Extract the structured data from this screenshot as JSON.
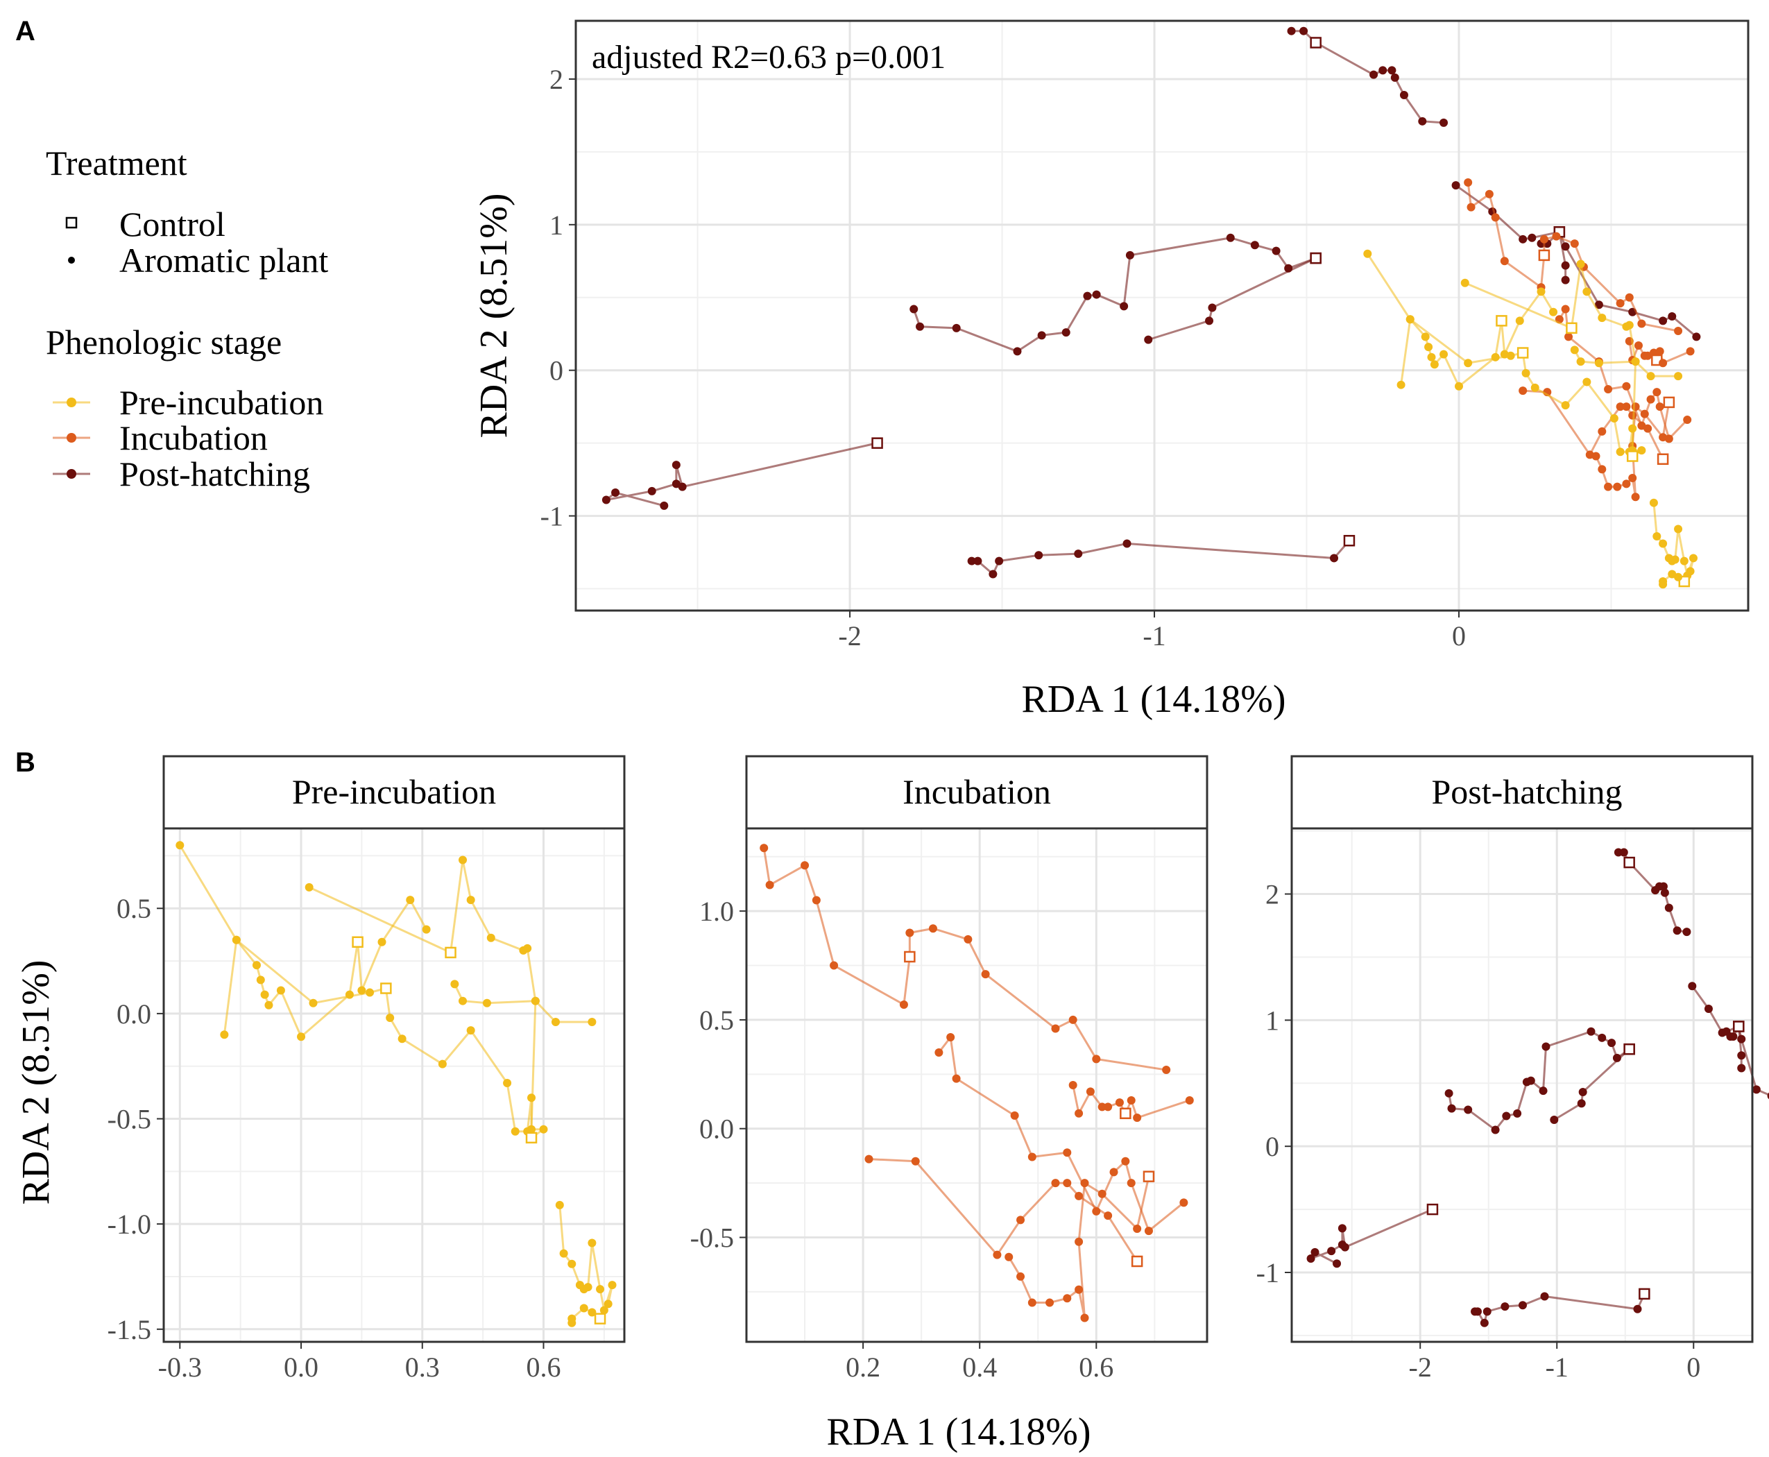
{
  "panel_labels": {
    "a": "A",
    "b": "B"
  },
  "colors": {
    "pre": "#F2BC1A",
    "inc": "#DC5B1C",
    "post": "#6B0F0C",
    "grid_major": "#E4E4E4",
    "grid_minor": "#F0F0F0",
    "panel_border": "#333333",
    "strip_fill": "#FFFFFF"
  },
  "legend": {
    "treatment_title": "Treatment",
    "treatment_items": [
      {
        "label": "Control",
        "shape": "open-square"
      },
      {
        "label": "Aromatic plant",
        "shape": "dot"
      }
    ],
    "stage_title": "Phenologic stage",
    "stage_items": [
      {
        "label": "Pre-incubation",
        "key": "pre"
      },
      {
        "label": "Incubation",
        "key": "inc"
      },
      {
        "label": "Post-hatching",
        "key": "post"
      }
    ]
  },
  "chart_data": [
    {
      "id": "A",
      "type": "scatter",
      "title": "",
      "annotation": "adjusted R2=0.63 p=0.001",
      "xlabel": "RDA 1 (14.18%)",
      "ylabel": "RDA 2 (8.51%)",
      "xlim": [
        -2.9,
        0.95
      ],
      "ylim": [
        -1.65,
        2.4
      ],
      "xticks": [
        -2,
        -1,
        0
      ],
      "xtick_labels": [
        "-2",
        "-1",
        "0"
      ],
      "yticks": [
        -1,
        0,
        1,
        2
      ],
      "ytick_labels": [
        "-1",
        "0",
        "1",
        "2"
      ],
      "grid": true,
      "series": [
        {
          "stage": "post",
          "control": [
            -1.91,
            -0.5
          ],
          "points": [
            [
              -2.61,
              -0.93
            ],
            [
              -2.77,
              -0.84
            ],
            [
              -2.8,
              -0.89
            ],
            [
              -2.65,
              -0.83
            ],
            [
              -2.57,
              -0.78
            ],
            [
              -2.57,
              -0.65
            ],
            [
              -2.55,
              -0.8
            ],
            [
              -1.91,
              -0.5
            ]
          ]
        },
        {
          "stage": "post",
          "control": [
            -0.36,
            -1.17
          ],
          "points": [
            [
              -1.6,
              -1.31
            ],
            [
              -1.58,
              -1.31
            ],
            [
              -1.53,
              -1.4
            ],
            [
              -1.51,
              -1.31
            ],
            [
              -1.38,
              -1.27
            ],
            [
              -1.25,
              -1.26
            ],
            [
              -1.09,
              -1.19
            ],
            [
              -0.41,
              -1.29
            ],
            [
              -0.36,
              -1.17
            ]
          ]
        },
        {
          "stage": "post",
          "control": [
            -0.47,
            0.77
          ],
          "points": [
            [
              -1.79,
              0.42
            ],
            [
              -1.77,
              0.3
            ],
            [
              -1.65,
              0.29
            ],
            [
              -1.45,
              0.13
            ],
            [
              -1.37,
              0.24
            ],
            [
              -1.29,
              0.26
            ],
            [
              -1.22,
              0.51
            ],
            [
              -1.19,
              0.52
            ],
            [
              -1.1,
              0.44
            ],
            [
              -1.08,
              0.79
            ],
            [
              -0.75,
              0.91
            ],
            [
              -0.67,
              0.86
            ],
            [
              -0.6,
              0.82
            ],
            [
              -0.56,
              0.7
            ],
            [
              -0.47,
              0.77
            ]
          ]
        },
        {
          "stage": "post",
          "control": [
            -0.47,
            0.77
          ],
          "points": [
            [
              -1.02,
              0.21
            ],
            [
              -0.82,
              0.34
            ],
            [
              -0.81,
              0.43
            ],
            [
              -0.47,
              0.77
            ]
          ]
        },
        {
          "stage": "post",
          "control": [
            -0.47,
            2.25
          ],
          "points": [
            [
              -0.55,
              2.33
            ],
            [
              -0.51,
              2.33
            ],
            [
              -0.47,
              2.25
            ],
            [
              -0.28,
              2.03
            ],
            [
              -0.25,
              2.06
            ],
            [
              -0.22,
              2.06
            ],
            [
              -0.21,
              2.01
            ],
            [
              -0.18,
              1.89
            ],
            [
              -0.12,
              1.71
            ],
            [
              -0.05,
              1.7
            ]
          ]
        },
        {
          "stage": "post",
          "control": [
            0.33,
            0.95
          ],
          "points": [
            [
              -0.01,
              1.27
            ],
            [
              0.11,
              1.09
            ],
            [
              0.21,
              0.9
            ],
            [
              0.24,
              0.91
            ],
            [
              0.33,
              0.95
            ],
            [
              0.35,
              0.85
            ],
            [
              0.46,
              0.45
            ],
            [
              0.57,
              0.4
            ],
            [
              0.67,
              0.34
            ],
            [
              0.7,
              0.37
            ],
            [
              0.78,
              0.23
            ]
          ]
        },
        {
          "stage": "post",
          "control": [
            0.33,
            0.95
          ],
          "points": [
            [
              0.27,
              0.87
            ],
            [
              0.29,
              0.87
            ],
            [
              0.33,
              0.95
            ],
            [
              0.35,
              0.72
            ],
            [
              0.35,
              0.62
            ]
          ]
        },
        {
          "stage": "inc",
          "control": [
            0.28,
            0.79
          ],
          "points": [
            [
              0.03,
              1.29
            ],
            [
              0.04,
              1.12
            ],
            [
              0.1,
              1.21
            ],
            [
              0.12,
              1.05
            ],
            [
              0.15,
              0.75
            ],
            [
              0.27,
              0.57
            ],
            [
              0.28,
              0.79
            ],
            [
              0.28,
              0.9
            ],
            [
              0.32,
              0.92
            ],
            [
              0.38,
              0.87
            ],
            [
              0.41,
              0.71
            ],
            [
              0.53,
              0.46
            ],
            [
              0.56,
              0.5
            ],
            [
              0.6,
              0.32
            ],
            [
              0.72,
              0.27
            ]
          ]
        },
        {
          "stage": "inc",
          "control": [
            0.65,
            0.07
          ],
          "points": [
            [
              0.33,
              0.35
            ],
            [
              0.35,
              0.42
            ],
            [
              0.36,
              0.23
            ],
            [
              0.46,
              0.06
            ],
            [
              0.49,
              -0.13
            ],
            [
              0.55,
              -0.11
            ],
            [
              0.6,
              -0.38
            ],
            [
              0.63,
              -0.2
            ],
            [
              0.65,
              -0.15
            ],
            [
              0.66,
              -0.25
            ],
            [
              0.69,
              -0.47
            ],
            [
              0.75,
              -0.34
            ]
          ]
        },
        {
          "stage": "inc",
          "control": [
            0.65,
            0.07
          ],
          "points": [
            [
              0.56,
              0.2
            ],
            [
              0.57,
              0.07
            ],
            [
              0.59,
              0.17
            ],
            [
              0.61,
              0.1
            ],
            [
              0.62,
              0.1
            ],
            [
              0.64,
              0.12
            ],
            [
              0.65,
              0.07
            ],
            [
              0.66,
              0.13
            ],
            [
              0.67,
              0.05
            ],
            [
              0.76,
              0.13
            ]
          ]
        },
        {
          "stage": "inc",
          "control": [
            0.67,
            -0.61
          ],
          "points": [
            [
              0.21,
              -0.14
            ],
            [
              0.29,
              -0.15
            ],
            [
              0.43,
              -0.58
            ],
            [
              0.47,
              -0.42
            ],
            [
              0.53,
              -0.25
            ],
            [
              0.55,
              -0.25
            ],
            [
              0.57,
              -0.31
            ],
            [
              0.62,
              -0.4
            ],
            [
              0.67,
              -0.61
            ]
          ]
        },
        {
          "stage": "inc",
          "control": [
            0.69,
            -0.22
          ],
          "points": [
            [
              0.45,
              -0.59
            ],
            [
              0.47,
              -0.68
            ],
            [
              0.49,
              -0.8
            ],
            [
              0.52,
              -0.8
            ],
            [
              0.55,
              -0.78
            ],
            [
              0.57,
              -0.74
            ],
            [
              0.58,
              -0.87
            ],
            [
              0.57,
              -0.52
            ],
            [
              0.58,
              -0.25
            ],
            [
              0.61,
              -0.3
            ],
            [
              0.67,
              -0.46
            ],
            [
              0.69,
              -0.22
            ]
          ]
        },
        {
          "stage": "pre",
          "control": [
            0.14,
            0.34
          ],
          "points": [
            [
              -0.3,
              0.8
            ],
            [
              -0.16,
              0.35
            ],
            [
              -0.11,
              0.23
            ],
            [
              -0.1,
              0.16
            ],
            [
              -0.09,
              0.09
            ],
            [
              -0.08,
              0.04
            ],
            [
              -0.05,
              0.11
            ],
            [
              0.0,
              -0.11
            ],
            [
              0.12,
              0.09
            ],
            [
              0.14,
              0.34
            ],
            [
              0.15,
              0.11
            ],
            [
              0.2,
              0.34
            ],
            [
              0.27,
              0.54
            ],
            [
              0.31,
              0.4
            ]
          ]
        },
        {
          "stage": "pre",
          "control": [
            0.37,
            0.29
          ],
          "points": [
            [
              0.02,
              0.6
            ],
            [
              0.37,
              0.29
            ],
            [
              0.4,
              0.73
            ],
            [
              0.42,
              0.54
            ],
            [
              0.47,
              0.36
            ],
            [
              0.55,
              0.3
            ],
            [
              0.56,
              0.31
            ],
            [
              0.58,
              0.06
            ],
            [
              0.63,
              -0.04
            ],
            [
              0.72,
              -0.04
            ]
          ]
        },
        {
          "stage": "pre",
          "control": [
            0.21,
            0.12
          ],
          "points": [
            [
              -0.19,
              -0.1
            ],
            [
              -0.16,
              0.35
            ],
            [
              0.03,
              0.05
            ],
            [
              0.17,
              0.1
            ],
            [
              0.21,
              0.12
            ],
            [
              0.22,
              -0.02
            ],
            [
              0.25,
              -0.12
            ],
            [
              0.35,
              -0.24
            ],
            [
              0.42,
              -0.08
            ],
            [
              0.51,
              -0.33
            ],
            [
              0.53,
              -0.56
            ],
            [
              0.56,
              -0.56
            ],
            [
              0.57,
              -0.4
            ],
            [
              0.57,
              -0.59
            ]
          ]
        },
        {
          "stage": "pre",
          "control": [
            0.57,
            -0.59
          ],
          "points": [
            [
              0.38,
              0.14
            ],
            [
              0.4,
              0.06
            ],
            [
              0.46,
              0.05
            ],
            [
              0.58,
              0.06
            ],
            [
              0.57,
              -0.55
            ],
            [
              0.6,
              -0.55
            ],
            [
              0.57,
              -0.59
            ]
          ]
        },
        {
          "stage": "pre",
          "control": [
            0.74,
            -1.45
          ],
          "points": [
            [
              0.64,
              -0.91
            ],
            [
              0.65,
              -1.14
            ],
            [
              0.67,
              -1.19
            ],
            [
              0.69,
              -1.29
            ],
            [
              0.7,
              -1.31
            ],
            [
              0.71,
              -1.3
            ],
            [
              0.72,
              -1.09
            ],
            [
              0.74,
              -1.31
            ],
            [
              0.75,
              -1.41
            ],
            [
              0.77,
              -1.29
            ],
            [
              0.76,
              -1.38
            ],
            [
              0.74,
              -1.45
            ],
            [
              0.72,
              -1.42
            ],
            [
              0.7,
              -1.4
            ],
            [
              0.67,
              -1.45
            ],
            [
              0.67,
              -1.47
            ]
          ]
        }
      ]
    },
    {
      "id": "B-pre",
      "type": "scatter",
      "strip_title": "Pre-incubation",
      "stage": "pre",
      "xlim": [
        -0.34,
        0.8
      ],
      "ylim": [
        -1.56,
        0.88
      ],
      "xticks": [
        -0.3,
        0.0,
        0.3,
        0.6
      ],
      "xtick_labels": [
        "-0.3",
        "0.0",
        "0.3",
        "0.6"
      ],
      "yticks": [
        -1.5,
        -1.0,
        -0.5,
        0.0,
        0.5
      ],
      "ytick_labels": [
        "-1.5",
        "-1.0",
        "-0.5",
        "0.0",
        "0.5"
      ],
      "grid": true
    },
    {
      "id": "B-inc",
      "type": "scatter",
      "strip_title": "Incubation",
      "stage": "inc",
      "xlabel": "RDA 1 (14.18%)",
      "xlim": [
        0.0,
        0.79
      ],
      "ylim": [
        -0.98,
        1.38
      ],
      "xticks": [
        0.2,
        0.4,
        0.6
      ],
      "xtick_labels": [
        "0.2",
        "0.4",
        "0.6"
      ],
      "yticks": [
        -0.5,
        0.0,
        0.5,
        1.0
      ],
      "ytick_labels": [
        "-0.5",
        "0.0",
        "0.5",
        "1.0"
      ],
      "grid": true
    },
    {
      "id": "B-post",
      "type": "scatter",
      "strip_title": "Post-hatching",
      "stage": "post",
      "xlim": [
        -2.94,
        0.43
      ],
      "ylim": [
        -1.55,
        2.52
      ],
      "xticks": [
        -2,
        -1,
        0
      ],
      "xtick_labels": [
        "-2",
        "-1",
        "0"
      ],
      "yticks": [
        -1,
        0,
        1,
        2
      ],
      "ytick_labels": [
        "-1",
        "0",
        "1",
        "2"
      ],
      "grid": true
    }
  ],
  "panel_b_ylabel": "RDA 2 (8.51%)"
}
